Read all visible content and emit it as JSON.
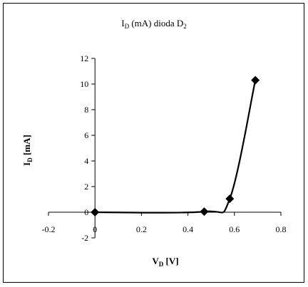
{
  "chart_data": {
    "type": "scatter",
    "title": {
      "main": "I",
      "sub": "D",
      "rest": " (mA) dioda D",
      "sub2": "2"
    },
    "xlabel": {
      "main": "V",
      "sub": "D",
      "rest": " [V]"
    },
    "ylabel": {
      "main": "I",
      "sub": "D",
      "rest": " [mA]"
    },
    "xlim": [
      -0.2,
      0.8
    ],
    "ylim": [
      -2,
      12
    ],
    "x_ticks": [
      -0.2,
      0,
      0.2,
      0.4,
      0.6,
      0.8
    ],
    "x_tick_labels": [
      "-0.2",
      "0",
      "0.2",
      "0.4",
      "0.6",
      "0.8"
    ],
    "y_ticks": [
      -2,
      0,
      2,
      4,
      6,
      8,
      10,
      12
    ],
    "y_tick_labels": [
      "-2",
      "0",
      "2",
      "4",
      "6",
      "8",
      "10",
      "12"
    ],
    "grid": false,
    "marker": "diamond",
    "line": "smooth",
    "series": [
      {
        "points": [
          {
            "x": 0,
            "y": 0
          },
          {
            "x": 0.47,
            "y": 0.05
          },
          {
            "x": 0.58,
            "y": 1.05
          },
          {
            "x": 0.69,
            "y": 10.3
          }
        ]
      }
    ],
    "colors": {
      "line": "#000000",
      "marker": "#000000",
      "border": "#000000"
    }
  }
}
